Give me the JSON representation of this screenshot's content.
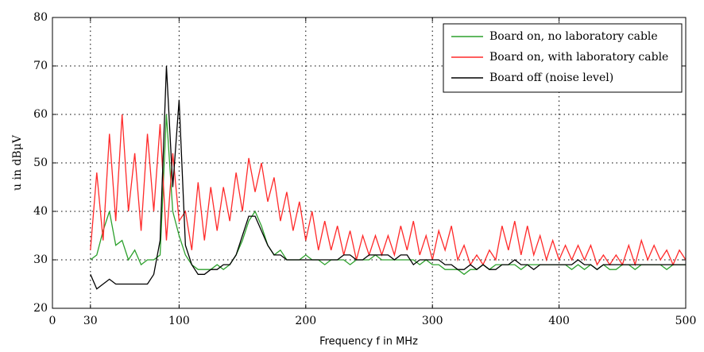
{
  "chart_data": {
    "type": "line",
    "xlabel": "Frequency f in MHz",
    "ylabel": "u in dBμV",
    "x": [
      30,
      35,
      40,
      45,
      50,
      55,
      60,
      65,
      70,
      75,
      80,
      85,
      90,
      95,
      100,
      105,
      110,
      115,
      120,
      125,
      130,
      135,
      140,
      145,
      150,
      155,
      160,
      165,
      170,
      175,
      180,
      185,
      190,
      195,
      200,
      205,
      210,
      215,
      220,
      225,
      230,
      235,
      240,
      245,
      250,
      255,
      260,
      265,
      270,
      275,
      280,
      285,
      290,
      295,
      300,
      305,
      310,
      315,
      320,
      325,
      330,
      335,
      340,
      345,
      350,
      355,
      360,
      365,
      370,
      375,
      380,
      385,
      390,
      395,
      400,
      405,
      410,
      415,
      420,
      425,
      430,
      435,
      440,
      445,
      450,
      455,
      460,
      465,
      470,
      475,
      480,
      485,
      490,
      495,
      500
    ],
    "series": [
      {
        "name": "Board on, no laboratory cable",
        "color": "#2ca02c",
        "values": [
          30,
          31,
          36,
          40,
          33,
          34,
          30,
          32,
          29,
          30,
          30,
          31,
          60,
          40,
          35,
          31,
          29,
          28,
          28,
          28,
          29,
          28,
          29,
          31,
          34,
          38,
          40,
          37,
          33,
          31,
          32,
          30,
          30,
          30,
          31,
          30,
          30,
          29,
          30,
          30,
          30,
          29,
          30,
          30,
          30,
          31,
          30,
          30,
          30,
          30,
          30,
          30,
          29,
          30,
          29,
          29,
          28,
          28,
          28,
          27,
          28,
          28,
          29,
          28,
          29,
          29,
          29,
          29,
          28,
          29,
          29,
          29,
          29,
          29,
          29,
          29,
          28,
          29,
          28,
          29,
          28,
          29,
          28,
          28,
          29,
          29,
          28,
          29,
          29,
          29,
          29,
          28,
          29,
          29,
          29
        ]
      },
      {
        "name": "Board on, with laboratory cable",
        "color": "#ff2a2a",
        "values": [
          32,
          48,
          34,
          56,
          38,
          60,
          40,
          52,
          36,
          56,
          40,
          58,
          34,
          52,
          38,
          40,
          32,
          46,
          34,
          45,
          36,
          45,
          38,
          48,
          40,
          51,
          44,
          50,
          42,
          47,
          38,
          44,
          36,
          42,
          34,
          40,
          32,
          38,
          32,
          37,
          31,
          36,
          30,
          35,
          31,
          35,
          31,
          35,
          31,
          37,
          32,
          38,
          31,
          35,
          30,
          36,
          32,
          37,
          30,
          33,
          29,
          31,
          29,
          32,
          30,
          37,
          32,
          38,
          31,
          37,
          31,
          35,
          30,
          34,
          30,
          33,
          30,
          33,
          30,
          33,
          29,
          31,
          29,
          31,
          29,
          33,
          29,
          34,
          30,
          33,
          30,
          32,
          29,
          32,
          30
        ]
      },
      {
        "name": "Board off (noise level)",
        "color": "#000000",
        "values": [
          27,
          24,
          25,
          26,
          25,
          25,
          25,
          25,
          25,
          25,
          27,
          34,
          70,
          45,
          63,
          33,
          29,
          27,
          27,
          28,
          28,
          29,
          29,
          31,
          35,
          39,
          39,
          36,
          33,
          31,
          31,
          30,
          30,
          30,
          30,
          30,
          30,
          30,
          30,
          30,
          31,
          31,
          30,
          30,
          31,
          31,
          31,
          31,
          30,
          31,
          31,
          29,
          30,
          30,
          30,
          30,
          29,
          29,
          28,
          28,
          29,
          28,
          29,
          28,
          28,
          29,
          29,
          30,
          29,
          29,
          28,
          29,
          29,
          29,
          29,
          29,
          29,
          30,
          29,
          29,
          28,
          29,
          29,
          29,
          29,
          29,
          29,
          29,
          29,
          29,
          29,
          29,
          29,
          29,
          29
        ]
      }
    ],
    "xlim": [
      0,
      500
    ],
    "xticks": [
      0,
      30,
      100,
      200,
      300,
      400,
      500
    ],
    "ylim": [
      20,
      80
    ],
    "yticks": [
      20,
      30,
      40,
      50,
      60,
      70,
      80
    ],
    "grid": true,
    "legend": "upper right"
  }
}
